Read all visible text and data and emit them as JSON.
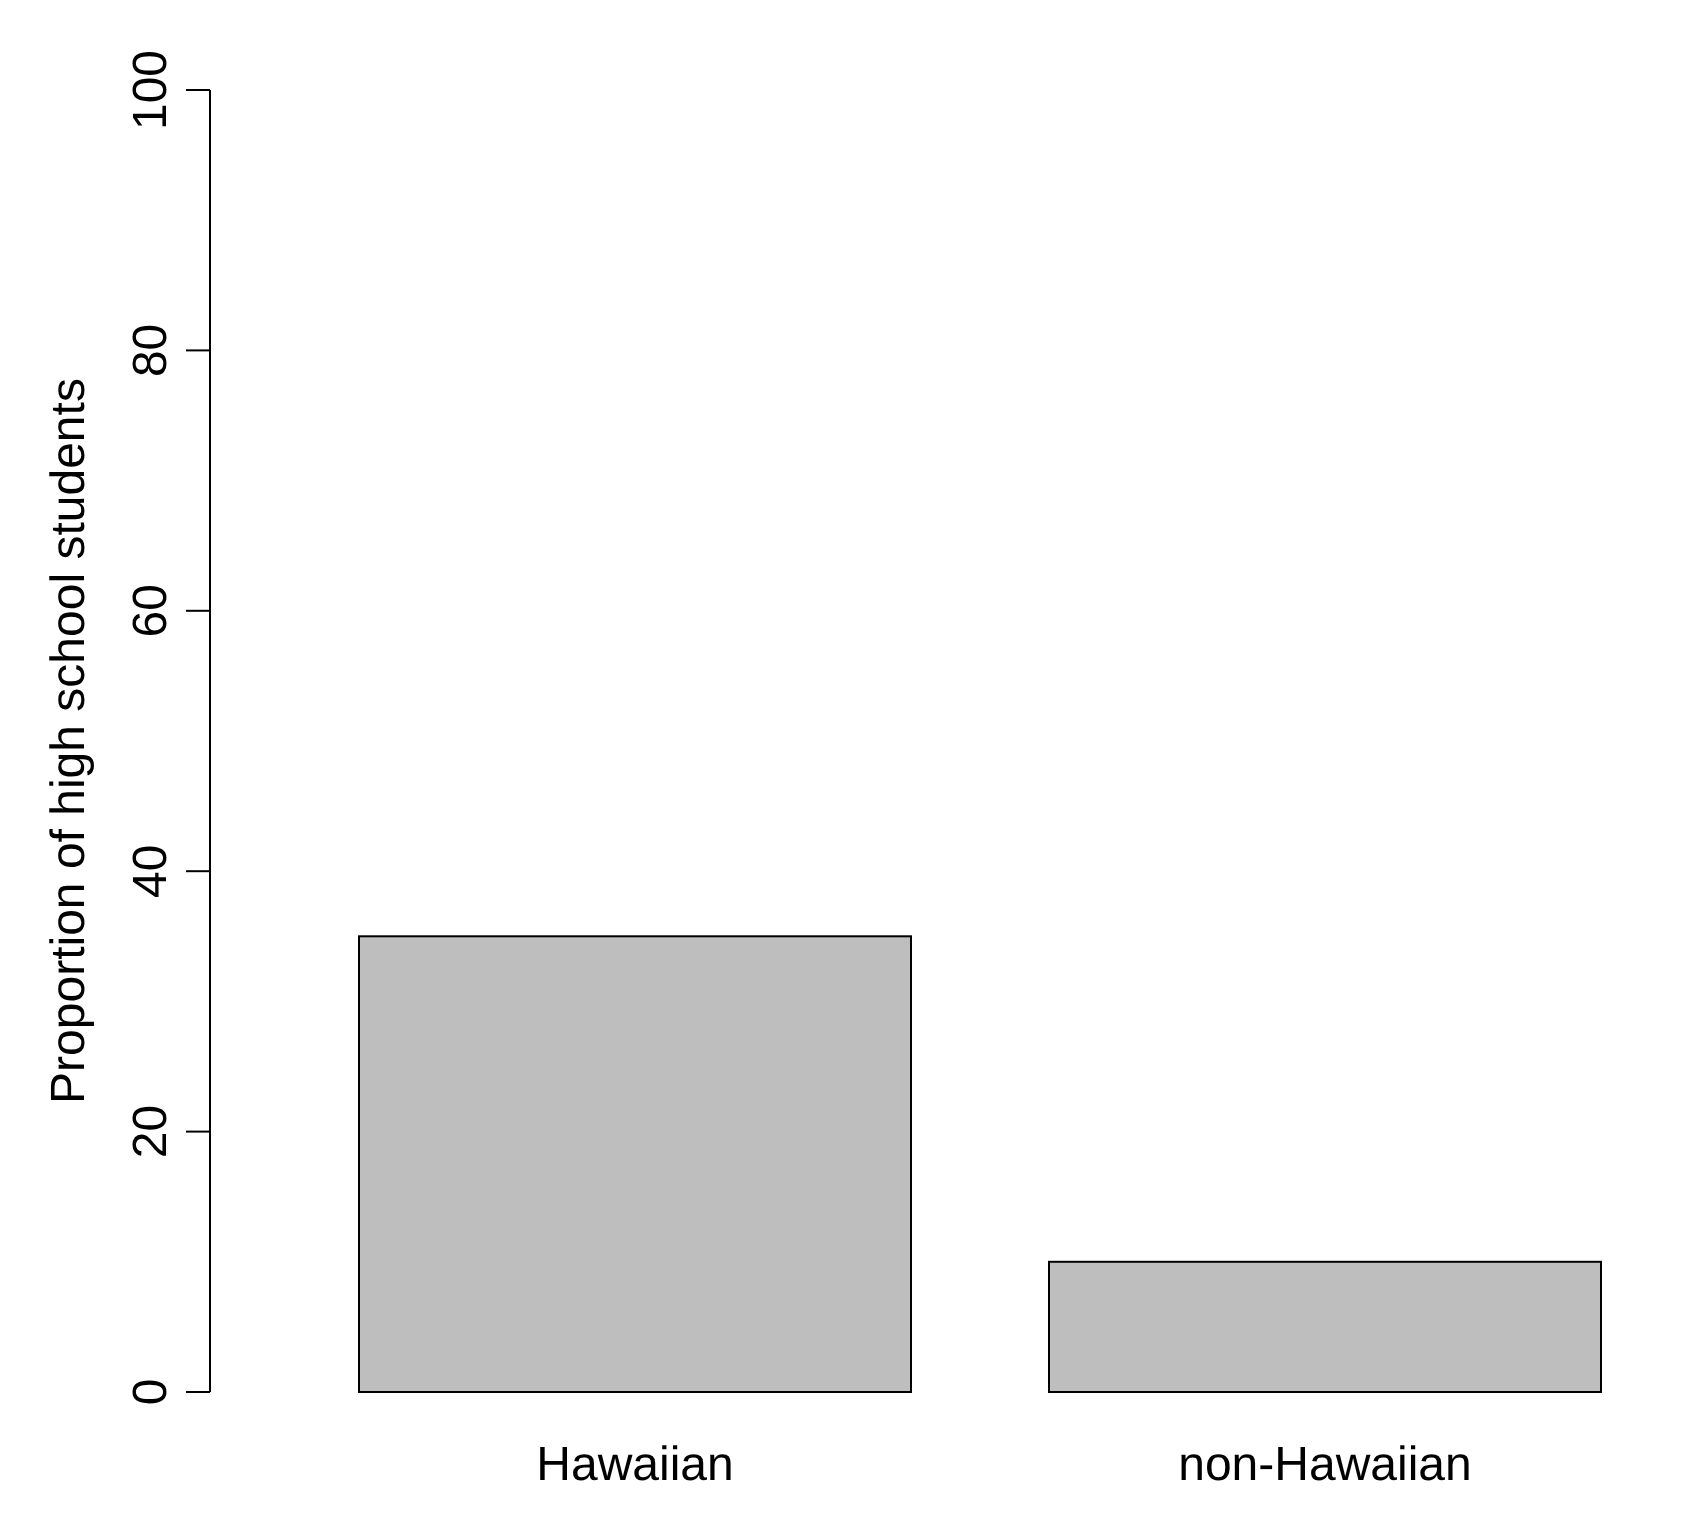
{
  "chart_data": {
    "type": "bar",
    "ylabel": "Proportion of high school students",
    "categories": [
      "Hawaiian",
      "non-Hawaiian"
    ],
    "values": [
      35,
      10
    ],
    "color": "#bebebe",
    "ylim": [
      0,
      100
    ],
    "yticks": [
      0,
      20,
      40,
      60,
      80,
      100
    ],
    "grid": false
  }
}
